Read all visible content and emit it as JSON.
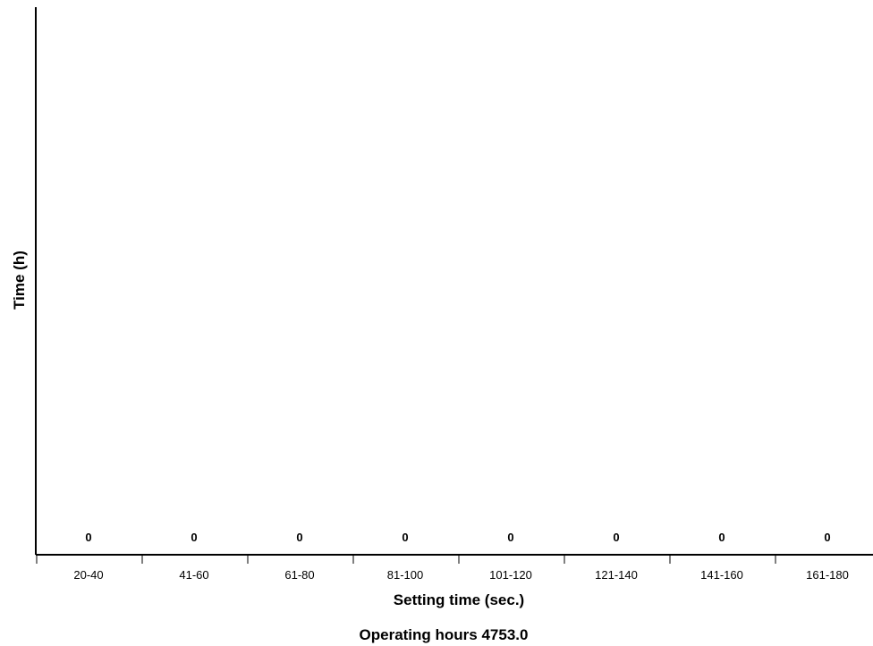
{
  "chart_data": {
    "type": "bar",
    "categories": [
      "20-40",
      "41-60",
      "61-80",
      "81-100",
      "101-120",
      "121-140",
      "141-160",
      "161-180"
    ],
    "values": [
      0,
      0,
      0,
      0,
      0,
      0,
      0,
      0
    ],
    "data_labels": [
      "0",
      "0",
      "0",
      "0",
      "0",
      "0",
      "0",
      "0"
    ],
    "title": "",
    "xlabel": "Setting time (sec.)",
    "ylabel": "Time (h)",
    "grid": false,
    "legend": "none"
  },
  "footer": {
    "text": "Operating hours 4753.0"
  }
}
